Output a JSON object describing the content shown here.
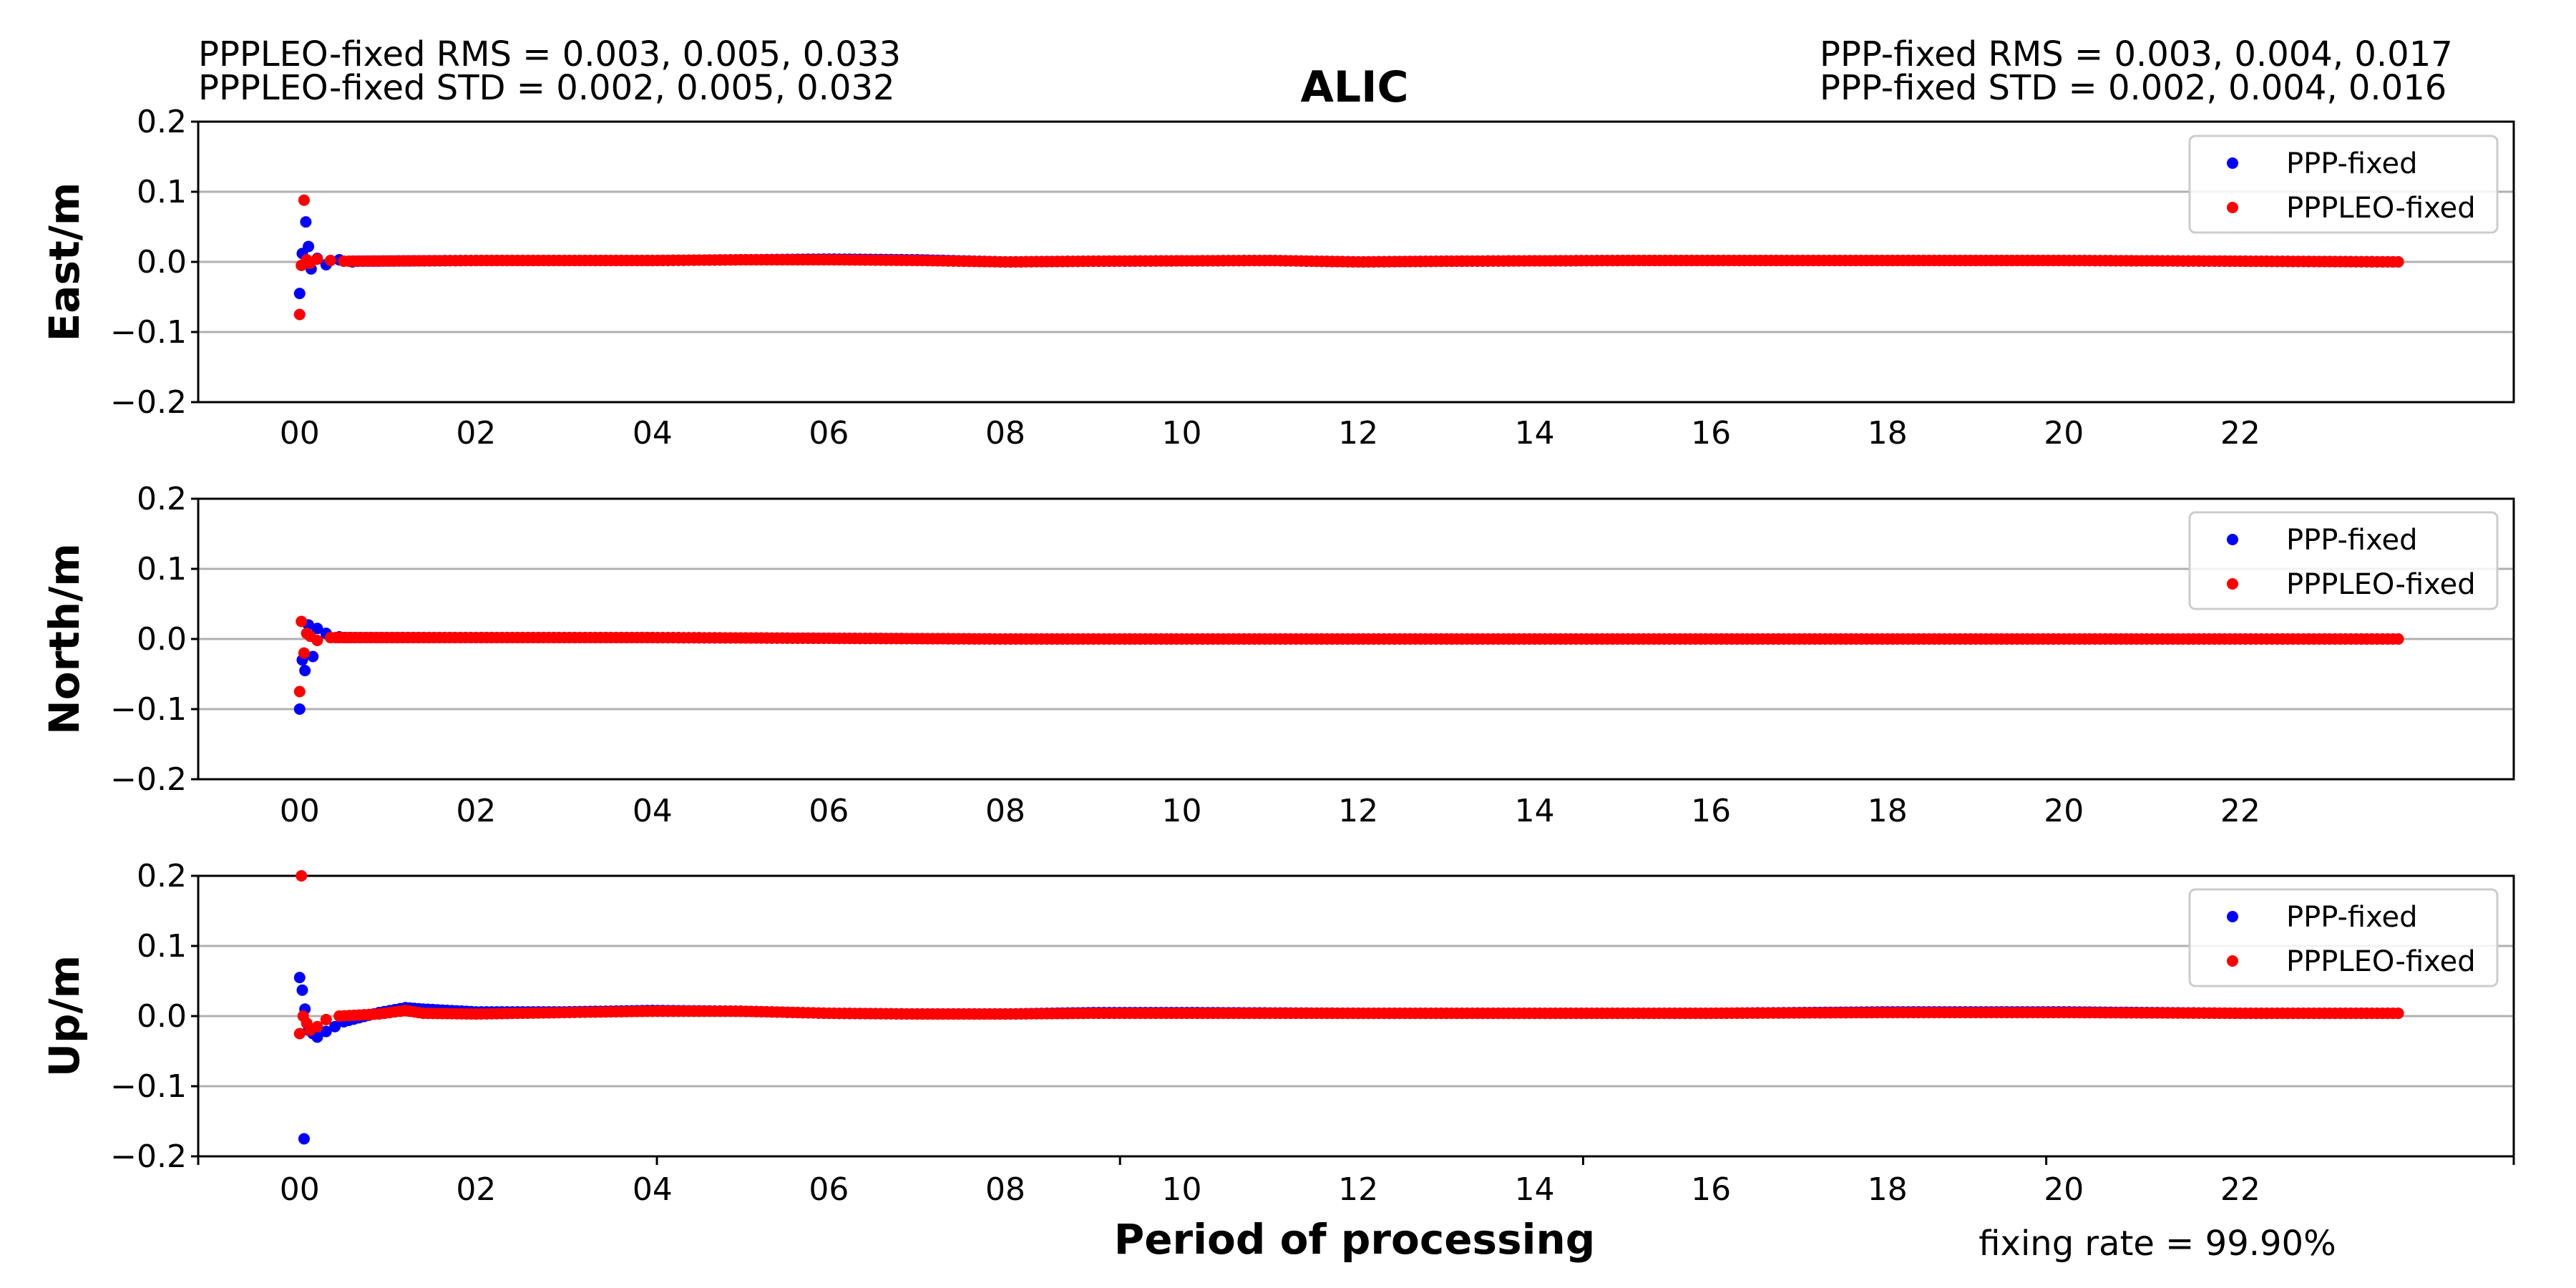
{
  "chart_data": {
    "type": "scatter",
    "title": "ALIC",
    "header": {
      "left_rms": "PPPLEO-fixed RMS =  0.003, 0.005, 0.033",
      "left_std": "PPPLEO-fixed STD =  0.002, 0.005, 0.032",
      "right_rms": "PPP-fixed RMS =  0.003, 0.004, 0.017",
      "right_std": "PPP-fixed STD =  0.002, 0.004, 0.016"
    },
    "xlabel": "Period of processing",
    "footer": "fixing rate =  99.90%",
    "xlim": [
      -1.15,
      25.1
    ],
    "xticks": [
      0,
      2,
      4,
      6,
      8,
      10,
      12,
      14,
      16,
      18,
      20,
      22
    ],
    "xtick_labels": [
      "00",
      "02",
      "04",
      "06",
      "08",
      "10",
      "12",
      "14",
      "16",
      "18",
      "20",
      "22"
    ],
    "ylim": [
      -0.2,
      0.2
    ],
    "yticks": [
      -0.2,
      -0.1,
      0.0,
      0.1,
      0.2
    ],
    "ytick_labels": [
      "−0.2",
      "−0.1",
      "0.0",
      "0.1",
      "0.2"
    ],
    "grid": "horizontal",
    "legend_position": "top-right",
    "series_colors": {
      "PPP-fixed": "#0000ff",
      "PPPLEO-fixed": "#ff0000"
    },
    "panels": [
      {
        "ylabel": "East/m",
        "series": [
          {
            "name": "PPP-fixed",
            "points": [
              [
                0.0,
                -0.045
              ],
              [
                0.03,
                0.012
              ],
              [
                0.07,
                0.057
              ],
              [
                0.1,
                0.022
              ],
              [
                0.13,
                -0.01
              ],
              [
                0.2,
                0.005
              ],
              [
                0.3,
                -0.004
              ],
              [
                0.45,
                0.003
              ],
              [
                0.6,
                0.0
              ]
            ],
            "trend": [
              [
                0.6,
                0.001
              ],
              [
                2,
                0.002
              ],
              [
                4,
                0.002
              ],
              [
                5,
                0.003
              ],
              [
                6,
                0.004
              ],
              [
                7,
                0.003
              ],
              [
                8,
                0.0
              ],
              [
                9,
                0.001
              ],
              [
                11,
                0.002
              ],
              [
                12,
                0.0
              ],
              [
                13,
                0.001
              ],
              [
                15,
                0.002
              ],
              [
                18,
                0.002
              ],
              [
                20,
                0.002
              ],
              [
                22,
                0.001
              ],
              [
                23.85,
                0.0
              ]
            ]
          },
          {
            "name": "PPPLEO-fixed",
            "points": [
              [
                0.0,
                -0.075
              ],
              [
                0.02,
                -0.005
              ],
              [
                0.05,
                0.088
              ],
              [
                0.08,
                0.003
              ],
              [
                0.12,
                -0.002
              ],
              [
                0.2,
                0.004
              ],
              [
                0.35,
                0.002
              ],
              [
                0.5,
                0.001
              ]
            ],
            "trend": [
              [
                0.5,
                0.001
              ],
              [
                2,
                0.002
              ],
              [
                4,
                0.002
              ],
              [
                5,
                0.003
              ],
              [
                6,
                0.003
              ],
              [
                7,
                0.002
              ],
              [
                8,
                0.0
              ],
              [
                9,
                0.001
              ],
              [
                11,
                0.002
              ],
              [
                12,
                0.0
              ],
              [
                13,
                0.001
              ],
              [
                15,
                0.002
              ],
              [
                18,
                0.002
              ],
              [
                20,
                0.002
              ],
              [
                22,
                0.001
              ],
              [
                23.85,
                0.0
              ]
            ]
          }
        ]
      },
      {
        "ylabel": "North/m",
        "series": [
          {
            "name": "PPP-fixed",
            "points": [
              [
                0.0,
                -0.1
              ],
              [
                0.03,
                -0.03
              ],
              [
                0.06,
                -0.045
              ],
              [
                0.1,
                0.02
              ],
              [
                0.15,
                -0.025
              ],
              [
                0.2,
                0.015
              ],
              [
                0.3,
                0.008
              ],
              [
                0.45,
                0.003
              ]
            ],
            "trend": [
              [
                0.45,
                0.002
              ],
              [
                2,
                0.002
              ],
              [
                4,
                0.002
              ],
              [
                6,
                0.001
              ],
              [
                8,
                0.0
              ],
              [
                10,
                0.0
              ],
              [
                12,
                0.0
              ],
              [
                14,
                0.0
              ],
              [
                16,
                0.0
              ],
              [
                18,
                0.0
              ],
              [
                20,
                0.0
              ],
              [
                22,
                0.0
              ],
              [
                23.85,
                0.0
              ]
            ]
          },
          {
            "name": "PPPLEO-fixed",
            "points": [
              [
                0.0,
                -0.075
              ],
              [
                0.02,
                0.025
              ],
              [
                0.05,
                -0.02
              ],
              [
                0.08,
                0.008
              ],
              [
                0.12,
                0.004
              ],
              [
                0.2,
                -0.002
              ],
              [
                0.35,
                0.002
              ]
            ],
            "trend": [
              [
                0.35,
                0.002
              ],
              [
                2,
                0.002
              ],
              [
                4,
                0.002
              ],
              [
                6,
                0.001
              ],
              [
                8,
                0.0
              ],
              [
                10,
                0.0
              ],
              [
                12,
                0.0
              ],
              [
                14,
                0.0
              ],
              [
                16,
                0.0
              ],
              [
                18,
                0.0
              ],
              [
                20,
                0.0
              ],
              [
                22,
                0.0
              ],
              [
                23.85,
                0.0
              ]
            ]
          }
        ]
      },
      {
        "ylabel": "Up/m",
        "series": [
          {
            "name": "PPP-fixed",
            "points": [
              [
                0.05,
                -0.175
              ],
              [
                0.0,
                0.055
              ],
              [
                0.03,
                0.037
              ],
              [
                0.06,
                0.01
              ],
              [
                0.1,
                -0.02
              ],
              [
                0.15,
                -0.025
              ],
              [
                0.2,
                -0.03
              ],
              [
                0.3,
                -0.022
              ],
              [
                0.4,
                -0.015
              ],
              [
                0.5,
                -0.008
              ]
            ],
            "trend": [
              [
                0.5,
                -0.008
              ],
              [
                0.9,
                0.005
              ],
              [
                1.2,
                0.012
              ],
              [
                1.4,
                0.01
              ],
              [
                2,
                0.006
              ],
              [
                3,
                0.006
              ],
              [
                4,
                0.008
              ],
              [
                5,
                0.007
              ],
              [
                6,
                0.004
              ],
              [
                7,
                0.003
              ],
              [
                8,
                0.003
              ],
              [
                9,
                0.005
              ],
              [
                10,
                0.005
              ],
              [
                12,
                0.004
              ],
              [
                14,
                0.004
              ],
              [
                16,
                0.004
              ],
              [
                18,
                0.006
              ],
              [
                20,
                0.006
              ],
              [
                22,
                0.004
              ],
              [
                23.85,
                0.004
              ]
            ]
          },
          {
            "name": "PPPLEO-fixed",
            "points": [
              [
                0.02,
                0.2
              ],
              [
                0.0,
                -0.025
              ],
              [
                0.04,
                0.0
              ],
              [
                0.08,
                -0.01
              ],
              [
                0.12,
                -0.02
              ],
              [
                0.2,
                -0.015
              ],
              [
                0.3,
                -0.005
              ],
              [
                0.45,
                0.0
              ]
            ],
            "trend": [
              [
                0.45,
                0.0
              ],
              [
                0.9,
                0.003
              ],
              [
                1.2,
                0.008
              ],
              [
                1.4,
                0.004
              ],
              [
                2,
                0.003
              ],
              [
                3,
                0.005
              ],
              [
                4,
                0.007
              ],
              [
                5,
                0.007
              ],
              [
                6,
                0.004
              ],
              [
                7,
                0.003
              ],
              [
                8,
                0.003
              ],
              [
                9,
                0.004
              ],
              [
                10,
                0.004
              ],
              [
                12,
                0.004
              ],
              [
                14,
                0.004
              ],
              [
                16,
                0.004
              ],
              [
                18,
                0.005
              ],
              [
                20,
                0.005
              ],
              [
                22,
                0.004
              ],
              [
                23.85,
                0.004
              ]
            ]
          }
        ]
      }
    ]
  }
}
